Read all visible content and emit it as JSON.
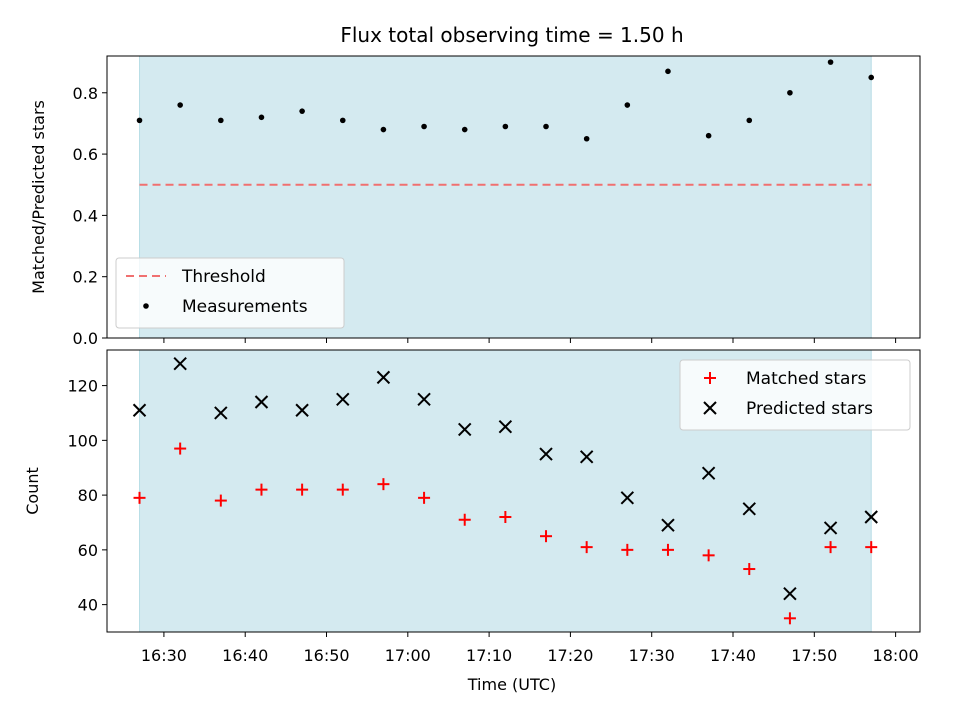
{
  "figure": {
    "title": "Flux total observing time = 1.50 h",
    "xlabel": "Time (UTC)"
  },
  "colors": {
    "shade": "#d4eaf0",
    "threshold": "#f07070",
    "measurements": "#000000",
    "matched": "#ff0000",
    "predicted": "#000000"
  },
  "chart_data": [
    {
      "type": "scatter",
      "ylabel": "Matched/Predicted stars",
      "ylim": [
        0,
        0.92
      ],
      "yticks": [
        0.0,
        0.2,
        0.4,
        0.6,
        0.8
      ],
      "ytick_labels": [
        "0.0",
        "0.2",
        "0.4",
        "0.6",
        "0.8"
      ],
      "xlim": [
        "16:23",
        "18:03"
      ],
      "shaded_span": [
        "16:27",
        "17:57"
      ],
      "x": [
        "16:27",
        "16:32",
        "16:37",
        "16:42",
        "16:47",
        "16:52",
        "16:57",
        "17:02",
        "17:07",
        "17:12",
        "17:17",
        "17:22",
        "17:27",
        "17:32",
        "17:37",
        "17:42",
        "17:47",
        "17:52",
        "17:57"
      ],
      "series": [
        {
          "name": "Threshold",
          "kind": "hline",
          "y": 0.5,
          "x_range": [
            "16:27",
            "17:57"
          ],
          "style": "dashed"
        },
        {
          "name": "Measurements",
          "kind": "scatter",
          "marker": "dot",
          "values": [
            0.71,
            0.76,
            0.71,
            0.72,
            0.74,
            0.71,
            0.68,
            0.69,
            0.68,
            0.69,
            0.69,
            0.65,
            0.76,
            0.87,
            0.66,
            0.71,
            0.8,
            0.9,
            0.85
          ]
        }
      ],
      "legend": {
        "placement": "lower-left",
        "entries": [
          "Threshold",
          "Measurements"
        ]
      },
      "grid": false
    },
    {
      "type": "scatter",
      "ylabel": "Count",
      "ylim": [
        30,
        133
      ],
      "yticks": [
        40,
        60,
        80,
        100,
        120
      ],
      "ytick_labels": [
        "40",
        "60",
        "80",
        "100",
        "120"
      ],
      "xlim": [
        "16:23",
        "18:03"
      ],
      "shaded_span": [
        "16:27",
        "17:57"
      ],
      "xticks": [
        "16:30",
        "16:40",
        "16:50",
        "17:00",
        "17:10",
        "17:20",
        "17:30",
        "17:40",
        "17:50",
        "18:00"
      ],
      "xtick_labels": [
        "16:30",
        "16:40",
        "16:50",
        "17:00",
        "17:10",
        "17:20",
        "17:30",
        "17:40",
        "17:50",
        "18:00"
      ],
      "x": [
        "16:27",
        "16:32",
        "16:37",
        "16:42",
        "16:47",
        "16:52",
        "16:57",
        "17:02",
        "17:07",
        "17:12",
        "17:17",
        "17:22",
        "17:27",
        "17:32",
        "17:37",
        "17:42",
        "17:47",
        "17:52",
        "17:57"
      ],
      "series": [
        {
          "name": "Matched stars",
          "kind": "scatter",
          "marker": "plus",
          "values": [
            79,
            97,
            78,
            82,
            82,
            82,
            84,
            79,
            71,
            72,
            65,
            61,
            60,
            60,
            58,
            53,
            35,
            61,
            61
          ]
        },
        {
          "name": "Predicted stars",
          "kind": "scatter",
          "marker": "x",
          "values": [
            111,
            128,
            110,
            114,
            111,
            115,
            123,
            115,
            104,
            105,
            95,
            94,
            79,
            69,
            88,
            75,
            44,
            68,
            72
          ]
        }
      ],
      "legend": {
        "placement": "upper-right",
        "entries": [
          "Matched stars",
          "Predicted stars"
        ]
      },
      "grid": false
    }
  ]
}
